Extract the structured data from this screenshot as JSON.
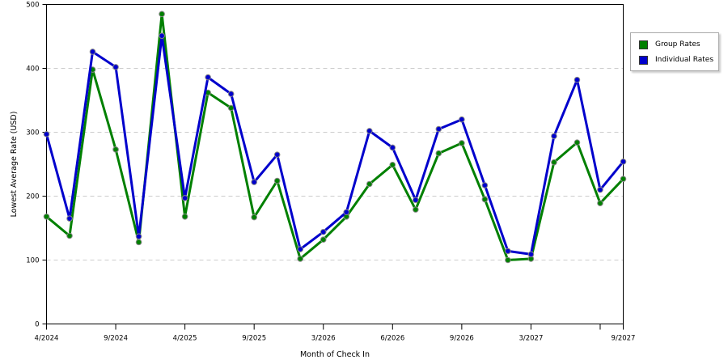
{
  "chart_data": {
    "type": "line",
    "xlabel": "Month of Check In",
    "ylabel": "Lowest Average Rate (USD)",
    "ylim": [
      0,
      500
    ],
    "yticks": [
      0,
      100,
      200,
      300,
      400,
      500
    ],
    "xtick_labels": [
      "4/2024",
      "9/2024",
      "4/2025",
      "9/2025",
      "3/2026",
      "6/2026",
      "9/2026",
      "3/2027",
      "9/2027"
    ],
    "grid": true,
    "legend_position": "right",
    "series": [
      {
        "name": "Group Rates",
        "color": "#008000",
        "values": [
          168,
          138,
          398,
          273,
          128,
          485,
          168,
          362,
          338,
          167,
          224,
          102,
          132,
          168,
          219,
          249,
          179,
          267,
          283,
          195,
          100,
          102,
          253,
          284,
          189,
          227
        ]
      },
      {
        "name": "Individual Rates",
        "color": "#0000cc",
        "values": [
          297,
          165,
          426,
          402,
          137,
          451,
          197,
          386,
          360,
          222,
          265,
          117,
          144,
          175,
          302,
          276,
          194,
          305,
          320,
          217,
          114,
          109,
          294,
          382,
          210,
          254
        ]
      }
    ]
  }
}
